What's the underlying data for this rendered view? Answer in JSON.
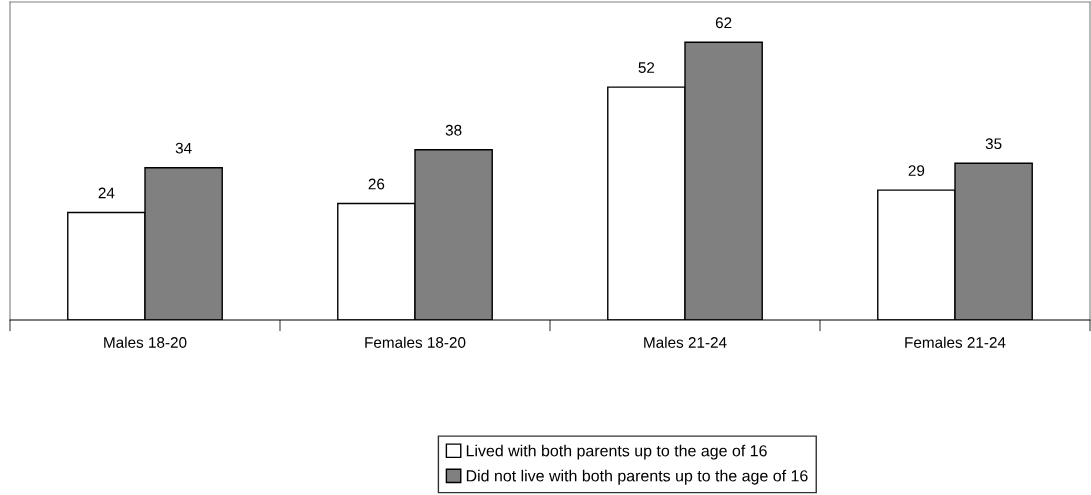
{
  "chart_data": {
    "type": "bar",
    "categories": [
      "Males 18-20",
      "Females 18-20",
      "Males 21-24",
      "Females 21-24"
    ],
    "series": [
      {
        "name": "Lived with both parents up to the age of 16",
        "color": "#ffffff",
        "values": [
          24,
          26,
          52,
          29
        ]
      },
      {
        "name": "Did not live with both parents up to the age of 16",
        "color": "#808080",
        "values": [
          34,
          38,
          62,
          35
        ]
      }
    ],
    "ylim": [
      0,
      71
    ],
    "tick_labels": "x",
    "data_labels": true,
    "grid": false,
    "legend": "bottom"
  }
}
